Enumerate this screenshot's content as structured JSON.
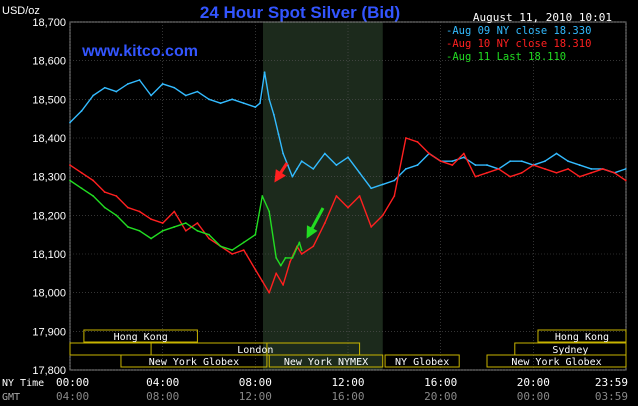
{
  "chart_data": {
    "type": "line",
    "title": "24 Hour Spot Silver (Bid)",
    "unit_label": "USD/oz",
    "timestamp": "August 11, 2010 10:01",
    "watermark": "www.kitco.com",
    "ylim": [
      17.8,
      18.7
    ],
    "y_ticks": [
      "18,700",
      "18,600",
      "18,500",
      "18,400",
      "18,300",
      "18,200",
      "18,100",
      "18,000",
      "17,900",
      "17,800"
    ],
    "x_ticks_ny": [
      "00:00",
      "04:00",
      "08:00",
      "12:00",
      "16:00",
      "20:00",
      "23:59"
    ],
    "x_ticks_gmt": [
      "04:00",
      "08:00",
      "12:00",
      "16:00",
      "20:00",
      "00:00",
      "03:59"
    ],
    "x_axis_label_ny": "NY Time",
    "x_axis_label_gmt": "GMT",
    "legend_placement": "top-right",
    "series": [
      {
        "name": "Aug 09 NY close 18.330",
        "color": "#33bbff",
        "x": [
          0,
          0.5,
          1,
          1.5,
          2,
          2.5,
          3,
          3.5,
          4,
          4.5,
          5,
          5.5,
          6,
          6.5,
          7,
          7.5,
          8,
          8.2,
          8.4,
          8.6,
          8.8,
          9,
          9.2,
          9.4,
          9.6,
          9.8,
          10,
          10.5,
          11,
          11.5,
          12,
          12.5,
          13,
          13.5,
          14,
          14.5,
          15,
          15.5,
          16,
          16.5,
          17,
          17.5,
          18,
          18.5,
          19,
          19.5,
          20,
          20.5,
          21,
          21.5,
          22,
          22.5,
          23,
          23.5,
          23.99
        ],
        "y": [
          18.44,
          18.47,
          18.51,
          18.53,
          18.52,
          18.54,
          18.55,
          18.51,
          18.54,
          18.53,
          18.51,
          18.52,
          18.5,
          18.49,
          18.5,
          18.49,
          18.48,
          18.49,
          18.57,
          18.5,
          18.46,
          18.41,
          18.36,
          18.33,
          18.3,
          18.32,
          18.34,
          18.32,
          18.36,
          18.33,
          18.35,
          18.31,
          18.27,
          18.28,
          18.29,
          18.32,
          18.33,
          18.36,
          18.34,
          18.34,
          18.35,
          18.33,
          18.33,
          18.32,
          18.34,
          18.34,
          18.33,
          18.34,
          18.36,
          18.34,
          18.33,
          18.32,
          18.32,
          18.31,
          18.32
        ]
      },
      {
        "name": "Aug 10 NY close 18.310",
        "color": "#ff2020",
        "x": [
          0,
          0.5,
          1,
          1.5,
          2,
          2.5,
          3,
          3.5,
          4,
          4.5,
          5,
          5.5,
          6,
          6.5,
          7,
          7.5,
          8,
          8.3,
          8.6,
          8.9,
          9.2,
          9.5,
          9.8,
          10,
          10.5,
          11,
          11.5,
          12,
          12.5,
          13,
          13.5,
          14,
          14.5,
          15,
          15.5,
          16,
          16.5,
          17,
          17.5,
          18,
          18.5,
          19,
          19.5,
          20,
          20.5,
          21,
          21.5,
          22,
          22.5,
          23,
          23.5,
          23.99
        ],
        "y": [
          18.33,
          18.31,
          18.29,
          18.26,
          18.25,
          18.22,
          18.21,
          18.19,
          18.18,
          18.21,
          18.16,
          18.18,
          18.14,
          18.12,
          18.1,
          18.11,
          18.06,
          18.03,
          18.0,
          18.05,
          18.02,
          18.08,
          18.12,
          18.1,
          18.12,
          18.18,
          18.25,
          18.22,
          18.25,
          18.17,
          18.2,
          18.25,
          18.4,
          18.39,
          18.36,
          18.34,
          18.33,
          18.36,
          18.3,
          18.31,
          18.32,
          18.3,
          18.31,
          18.33,
          18.32,
          18.31,
          18.32,
          18.3,
          18.31,
          18.32,
          18.31,
          18.29
        ]
      },
      {
        "name": "Aug 11 Last 18.110",
        "color": "#22dd22",
        "x": [
          0,
          0.5,
          1,
          1.5,
          2,
          2.5,
          3,
          3.5,
          4,
          4.5,
          5,
          5.5,
          6,
          6.5,
          7,
          7.5,
          8,
          8.3,
          8.6,
          8.9,
          9.1,
          9.3,
          9.6,
          9.9,
          10.0
        ],
        "y": [
          18.29,
          18.27,
          18.25,
          18.22,
          18.2,
          18.17,
          18.16,
          18.14,
          18.16,
          18.17,
          18.18,
          18.16,
          18.15,
          18.12,
          18.11,
          18.13,
          18.15,
          18.25,
          18.21,
          18.09,
          18.07,
          18.09,
          18.09,
          18.13,
          18.11
        ]
      }
    ],
    "annotations": [
      "red-arrow-down-left",
      "green-arrow-down-left"
    ]
  },
  "sessions": {
    "row1": [
      {
        "label": "Hong Kong"
      },
      {
        "label": "Hong Kong"
      }
    ],
    "row2": [
      {
        "label": "London"
      },
      {
        "label": "Sydney"
      }
    ],
    "row3": [
      {
        "label": "New York Globex"
      },
      {
        "label": "New York NYMEX"
      },
      {
        "label": "NY Globex"
      },
      {
        "label": "New York Globex"
      }
    ]
  },
  "colors": {
    "background": "#000000",
    "axis_text": "#ffffff",
    "title": "#3355ff",
    "watermark": "#3355ff",
    "session_border": "#c8b400",
    "nymex_shade": "#1c2a1c",
    "grid": "#555555"
  }
}
